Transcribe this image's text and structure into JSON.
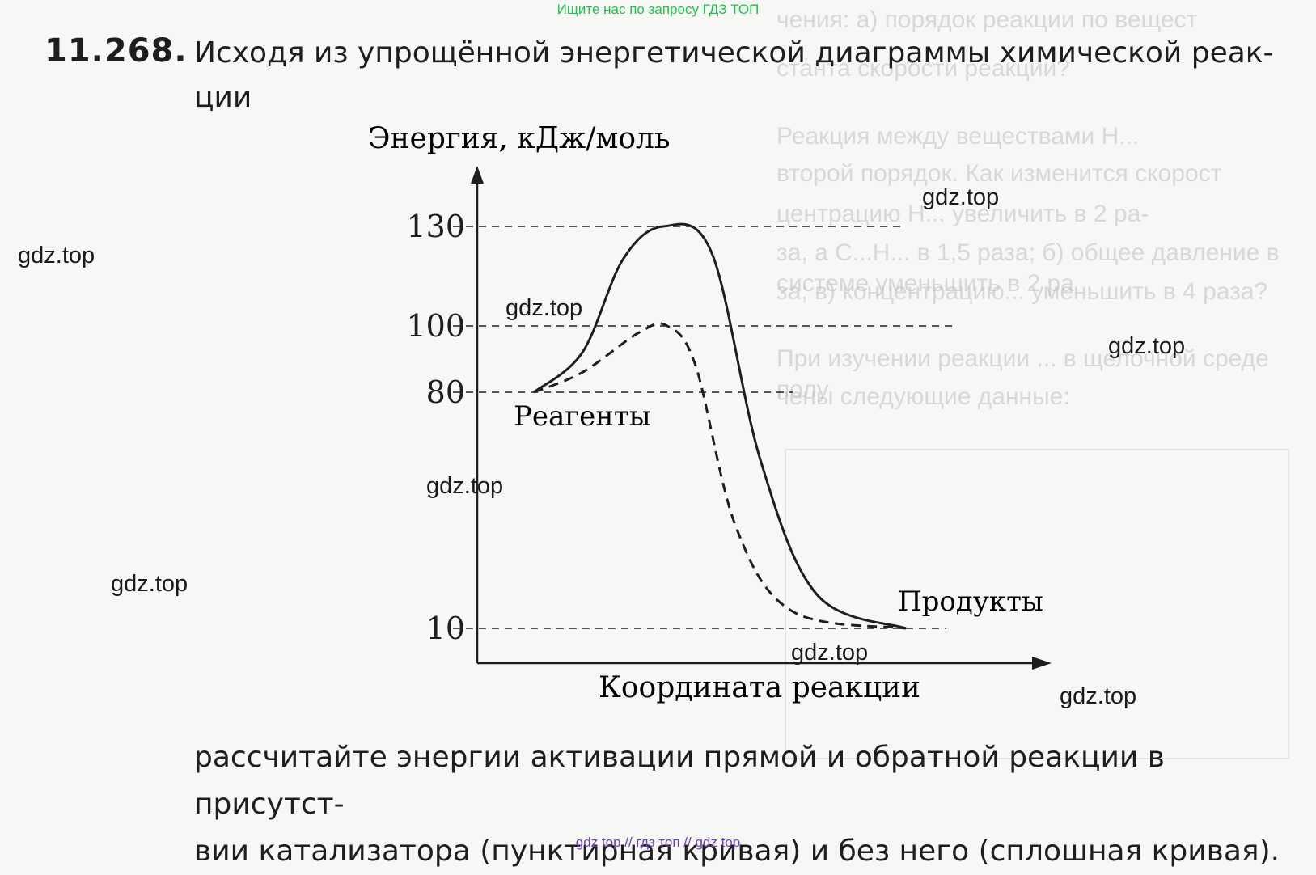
{
  "banner": "Ищите нас по запросу ГДЗ ТОП",
  "problem": {
    "number": "11.268.",
    "text_line1": "Исходя из упрощённой энергетической диаграммы химической реак-",
    "text_line2": "ции",
    "text_line3": "рассчитайте энергии активации прямой и обратной реакции в присутст-",
    "text_line4": "вии катализатора (пунктирная кривая) и без него (сплошная кривая)."
  },
  "watermarks": [
    "gdz.top",
    "gdz.top",
    "gdz.top",
    "gdz.top",
    "gdz.top",
    "gdz.top",
    "gdz.top",
    "gdz.top"
  ],
  "footer": "gdz top  //  гдз топ  //  gdz top",
  "ghost_lines": [
    "чения: а) порядок реакции по вещест",
    "станта скорости реакции?",
    "Реакция между веществами H...",
    "второй порядок. Как изменится скорост",
    "центрацию H... увеличить в 2 ра-",
    "за, а C...H... в 1,5 раза; б) общее давление в системе уменьшить в 2 ра",
    "за; в) концентрацию... уменьшить в 4 раза?",
    "При изучении реакции ... в щелочной среде полу",
    "чены следующие данные:"
  ],
  "chart_data": {
    "type": "line",
    "title": "",
    "ylabel": "Энергия, кДж/моль",
    "xlabel": "Координата реакции",
    "y_ticks": [
      "130",
      "100",
      "80",
      "10"
    ],
    "y_tick_values": [
      130,
      100,
      80,
      10
    ],
    "annotations": {
      "reactants": "Реагенты",
      "products": "Продукты"
    },
    "levels": {
      "reactants": 80,
      "peak_uncatalyzed": 130,
      "peak_catalyzed": 100,
      "products": 10
    },
    "series": [
      {
        "style": "solid",
        "values": [
          80,
          92,
          120,
          130,
          122,
          60,
          20,
          10
        ]
      },
      {
        "style": "dashed",
        "values": [
          80,
          86,
          98,
          100,
          88,
          40,
          15,
          10
        ]
      }
    ],
    "colors": {
      "curve": "#1e1e1e",
      "axis": "#1e1e1e"
    }
  }
}
